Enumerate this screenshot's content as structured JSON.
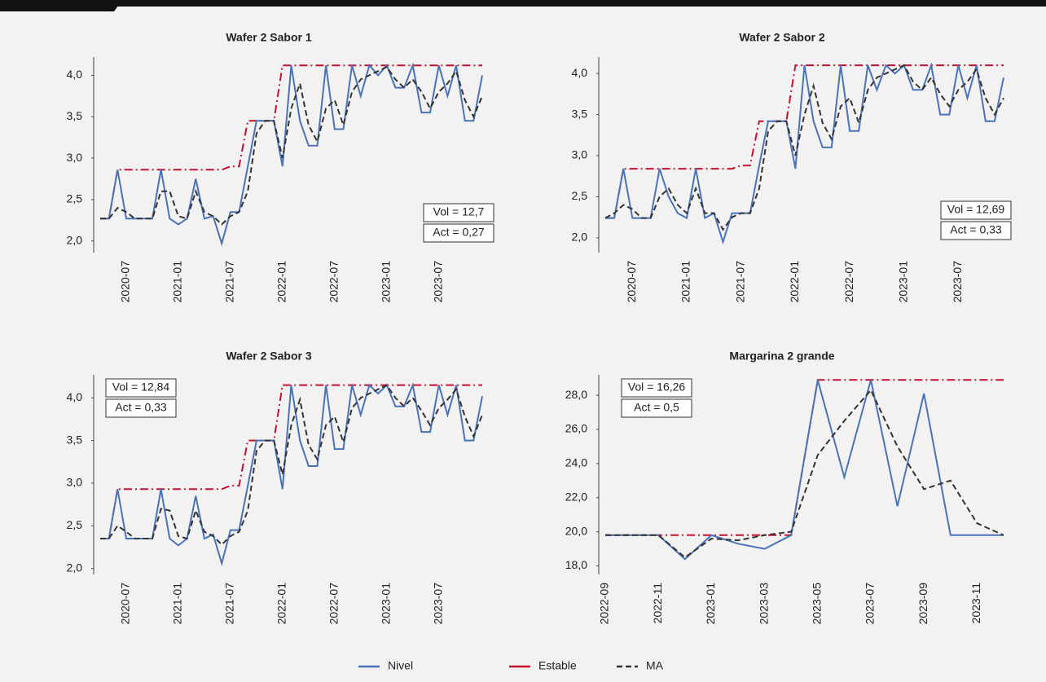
{
  "chart_data": [
    {
      "type": "line",
      "title": "Wafer 2 Sabor 1",
      "x": [
        "2020-04",
        "2020-05",
        "2020-06",
        "2020-07",
        "2020-08",
        "2020-09",
        "2020-10",
        "2020-11",
        "2020-12",
        "2021-01",
        "2021-02",
        "2021-03",
        "2021-04",
        "2021-05",
        "2021-06",
        "2021-07",
        "2021-08",
        "2021-09",
        "2021-10",
        "2021-11",
        "2021-12",
        "2022-01",
        "2022-02",
        "2022-03",
        "2022-04",
        "2022-05",
        "2022-06",
        "2022-07",
        "2022-08",
        "2022-09",
        "2022-10",
        "2022-11",
        "2022-12",
        "2023-01",
        "2023-02",
        "2023-03",
        "2023-04",
        "2023-05",
        "2023-06",
        "2023-07",
        "2023-08",
        "2023-09",
        "2023-10",
        "2023-11",
        "2023-12"
      ],
      "series": [
        {
          "name": "Nivel",
          "color": "#4a72b8",
          "style": "solid",
          "values": [
            2.27,
            2.27,
            2.86,
            2.27,
            2.27,
            2.27,
            2.27,
            2.86,
            2.27,
            2.2,
            2.27,
            2.75,
            2.27,
            2.3,
            1.97,
            2.35,
            2.35,
            2.9,
            3.45,
            3.45,
            3.45,
            2.9,
            4.12,
            3.45,
            3.15,
            3.15,
            4.12,
            3.35,
            3.35,
            4.12,
            3.75,
            4.12,
            4.0,
            4.12,
            3.85,
            3.85,
            4.12,
            3.55,
            3.55,
            4.12,
            3.75,
            4.12,
            3.45,
            3.45,
            4.0
          ]
        },
        {
          "name": "Estable",
          "color": "#c8102e",
          "style": "dashdot",
          "values": [
            2.27,
            2.27,
            2.86,
            2.86,
            2.86,
            2.86,
            2.86,
            2.86,
            2.86,
            2.86,
            2.86,
            2.86,
            2.86,
            2.86,
            2.86,
            2.9,
            2.9,
            3.45,
            3.45,
            3.45,
            3.45,
            4.12,
            4.12,
            4.12,
            4.12,
            4.12,
            4.12,
            4.12,
            4.12,
            4.12,
            4.12,
            4.12,
            4.12,
            4.12,
            4.12,
            4.12,
            4.12,
            4.12,
            4.12,
            4.12,
            4.12,
            4.12,
            4.12,
            4.12,
            4.12
          ]
        },
        {
          "name": "MA",
          "color": "#333333",
          "style": "dash",
          "values": [
            2.27,
            2.27,
            2.4,
            2.35,
            2.27,
            2.27,
            2.27,
            2.6,
            2.6,
            2.3,
            2.27,
            2.6,
            2.35,
            2.3,
            2.2,
            2.3,
            2.35,
            2.6,
            3.3,
            3.45,
            3.45,
            3.0,
            3.6,
            3.9,
            3.4,
            3.2,
            3.6,
            3.7,
            3.4,
            3.8,
            3.95,
            4.0,
            4.05,
            4.1,
            3.95,
            3.85,
            3.95,
            3.8,
            3.6,
            3.8,
            3.9,
            4.05,
            3.7,
            3.5,
            3.75
          ]
        }
      ],
      "xlim": [
        "2020-04",
        "2023-12"
      ],
      "xticks": [
        "2020-07",
        "2021-01",
        "2021-07",
        "2022-01",
        "2022-07",
        "2023-01",
        "2023-07"
      ],
      "ylim": [
        1.86,
        4.22
      ],
      "yticks": [
        {
          "value": 2,
          "label": "2,0"
        },
        {
          "value": 2.5,
          "label": "2,5"
        },
        {
          "value": 3,
          "label": "3,0"
        },
        {
          "value": 3.5,
          "label": "3,5"
        },
        {
          "value": 4,
          "label": "4,0"
        }
      ],
      "annotations": [
        "Vol = 12,7",
        "Act = 0,27"
      ]
    },
    {
      "type": "line",
      "title": "Wafer 2 Sabor 2",
      "x": [
        "2020-04",
        "2020-05",
        "2020-06",
        "2020-07",
        "2020-08",
        "2020-09",
        "2020-10",
        "2020-11",
        "2020-12",
        "2021-01",
        "2021-02",
        "2021-03",
        "2021-04",
        "2021-05",
        "2021-06",
        "2021-07",
        "2021-08",
        "2021-09",
        "2021-10",
        "2021-11",
        "2021-12",
        "2022-01",
        "2022-02",
        "2022-03",
        "2022-04",
        "2022-05",
        "2022-06",
        "2022-07",
        "2022-08",
        "2022-09",
        "2022-10",
        "2022-11",
        "2022-12",
        "2023-01",
        "2023-02",
        "2023-03",
        "2023-04",
        "2023-05",
        "2023-06",
        "2023-07",
        "2023-08",
        "2023-09",
        "2023-10",
        "2023-11",
        "2023-12"
      ],
      "series": [
        {
          "name": "Nivel",
          "color": "#4a72b8",
          "style": "solid",
          "values": [
            2.24,
            2.24,
            2.84,
            2.24,
            2.24,
            2.24,
            2.84,
            2.5,
            2.3,
            2.24,
            2.84,
            2.24,
            2.3,
            1.95,
            2.3,
            2.3,
            2.3,
            2.88,
            3.42,
            3.42,
            3.42,
            2.84,
            4.1,
            3.42,
            3.1,
            3.1,
            4.1,
            3.3,
            3.3,
            4.1,
            3.8,
            4.1,
            4.0,
            4.1,
            3.8,
            3.8,
            4.1,
            3.5,
            3.5,
            4.1,
            3.7,
            4.1,
            3.42,
            3.42,
            3.95
          ]
        },
        {
          "name": "Estable",
          "color": "#c8102e",
          "style": "dashdot",
          "values": [
            2.24,
            2.24,
            2.84,
            2.84,
            2.84,
            2.84,
            2.84,
            2.84,
            2.84,
            2.84,
            2.84,
            2.84,
            2.84,
            2.84,
            2.84,
            2.88,
            2.88,
            3.42,
            3.42,
            3.42,
            3.42,
            4.1,
            4.1,
            4.1,
            4.1,
            4.1,
            4.1,
            4.1,
            4.1,
            4.1,
            4.1,
            4.1,
            4.1,
            4.1,
            4.1,
            4.1,
            4.1,
            4.1,
            4.1,
            4.1,
            4.1,
            4.1,
            4.1,
            4.1,
            4.1
          ]
        },
        {
          "name": "MA",
          "color": "#333333",
          "style": "dash",
          "values": [
            2.24,
            2.3,
            2.4,
            2.35,
            2.24,
            2.24,
            2.5,
            2.6,
            2.4,
            2.3,
            2.6,
            2.3,
            2.3,
            2.1,
            2.25,
            2.3,
            2.3,
            2.6,
            3.3,
            3.42,
            3.42,
            3.0,
            3.5,
            3.85,
            3.4,
            3.2,
            3.6,
            3.7,
            3.4,
            3.8,
            3.95,
            4.0,
            4.05,
            4.1,
            3.9,
            3.8,
            3.95,
            3.75,
            3.6,
            3.8,
            3.9,
            4.05,
            3.7,
            3.5,
            3.7
          ]
        }
      ],
      "xlim": [
        "2020-04",
        "2023-12"
      ],
      "xticks": [
        "2020-07",
        "2021-01",
        "2021-07",
        "2022-01",
        "2022-07",
        "2023-01",
        "2023-07"
      ],
      "ylim": [
        1.82,
        4.2
      ],
      "yticks": [
        {
          "value": 2,
          "label": "2,0"
        },
        {
          "value": 2.5,
          "label": "2,5"
        },
        {
          "value": 3,
          "label": "3,0"
        },
        {
          "value": 3.5,
          "label": "3,5"
        },
        {
          "value": 4,
          "label": "4,0"
        }
      ],
      "annotations": [
        "Vol = 12,69",
        "Act = 0,33"
      ]
    },
    {
      "type": "line",
      "title": "Wafer 2 Sabor 3",
      "x": [
        "2020-04",
        "2020-05",
        "2020-06",
        "2020-07",
        "2020-08",
        "2020-09",
        "2020-10",
        "2020-11",
        "2020-12",
        "2021-01",
        "2021-02",
        "2021-03",
        "2021-04",
        "2021-05",
        "2021-06",
        "2021-07",
        "2021-08",
        "2021-09",
        "2021-10",
        "2021-11",
        "2021-12",
        "2022-01",
        "2022-02",
        "2022-03",
        "2022-04",
        "2022-05",
        "2022-06",
        "2022-07",
        "2022-08",
        "2022-09",
        "2022-10",
        "2022-11",
        "2022-12",
        "2023-01",
        "2023-02",
        "2023-03",
        "2023-04",
        "2023-05",
        "2023-06",
        "2023-07",
        "2023-08",
        "2023-09",
        "2023-10",
        "2023-11",
        "2023-12"
      ],
      "series": [
        {
          "name": "Nivel",
          "color": "#4a72b8",
          "style": "solid",
          "values": [
            2.35,
            2.35,
            2.93,
            2.35,
            2.35,
            2.35,
            2.35,
            2.93,
            2.35,
            2.27,
            2.35,
            2.85,
            2.35,
            2.4,
            2.06,
            2.45,
            2.45,
            2.97,
            3.5,
            3.5,
            3.5,
            2.93,
            4.15,
            3.5,
            3.2,
            3.2,
            4.15,
            3.4,
            3.4,
            4.15,
            3.8,
            4.15,
            4.05,
            4.15,
            3.9,
            3.9,
            4.15,
            3.6,
            3.6,
            4.15,
            3.8,
            4.15,
            3.5,
            3.5,
            4.02
          ]
        },
        {
          "name": "Estable",
          "color": "#c8102e",
          "style": "dashdot",
          "values": [
            2.35,
            2.35,
            2.93,
            2.93,
            2.93,
            2.93,
            2.93,
            2.93,
            2.93,
            2.93,
            2.93,
            2.93,
            2.93,
            2.93,
            2.93,
            2.97,
            2.97,
            3.5,
            3.5,
            3.5,
            3.5,
            4.15,
            4.15,
            4.15,
            4.15,
            4.15,
            4.15,
            4.15,
            4.15,
            4.15,
            4.15,
            4.15,
            4.15,
            4.15,
            4.15,
            4.15,
            4.15,
            4.15,
            4.15,
            4.15,
            4.15,
            4.15,
            4.15,
            4.15,
            4.15
          ]
        },
        {
          "name": "MA",
          "color": "#333333",
          "style": "dash",
          "values": [
            2.35,
            2.35,
            2.5,
            2.43,
            2.35,
            2.35,
            2.35,
            2.7,
            2.68,
            2.38,
            2.35,
            2.68,
            2.43,
            2.38,
            2.28,
            2.38,
            2.43,
            2.68,
            3.38,
            3.5,
            3.5,
            3.1,
            3.68,
            3.98,
            3.45,
            3.28,
            3.68,
            3.78,
            3.48,
            3.88,
            4.0,
            4.05,
            4.1,
            4.15,
            4.0,
            3.9,
            4.0,
            3.85,
            3.68,
            3.88,
            3.98,
            4.1,
            3.78,
            3.55,
            3.8
          ]
        }
      ],
      "xlim": [
        "2020-04",
        "2023-12"
      ],
      "xticks": [
        "2020-07",
        "2021-01",
        "2021-07",
        "2022-01",
        "2022-07",
        "2023-01",
        "2023-07"
      ],
      "ylim": [
        1.93,
        4.27
      ],
      "yticks": [
        {
          "value": 2,
          "label": "2,0"
        },
        {
          "value": 2.5,
          "label": "2,5"
        },
        {
          "value": 3,
          "label": "3,0"
        },
        {
          "value": 3.5,
          "label": "3,5"
        },
        {
          "value": 4,
          "label": "4,0"
        }
      ],
      "annotations": [
        "Vol = 12,84",
        "Act = 0,33"
      ]
    },
    {
      "type": "line",
      "title": "Margarina 2 grande",
      "x": [
        "2022-09",
        "2022-10",
        "2022-11",
        "2022-12",
        "2023-01",
        "2023-02",
        "2023-03",
        "2023-04",
        "2023-05",
        "2023-06",
        "2023-07",
        "2023-08",
        "2023-09",
        "2023-10",
        "2023-11",
        "2023-12"
      ],
      "series": [
        {
          "name": "Nivel",
          "color": "#4a72b8",
          "style": "solid",
          "values": [
            19.8,
            19.8,
            19.8,
            18.4,
            19.8,
            19.3,
            19.0,
            19.8,
            28.9,
            23.2,
            28.9,
            21.5,
            28.1,
            19.8,
            19.8,
            19.8
          ]
        },
        {
          "name": "Estable",
          "color": "#c8102e",
          "style": "dashdot",
          "values": [
            19.8,
            19.8,
            19.8,
            19.8,
            19.8,
            19.8,
            19.8,
            19.8,
            28.9,
            28.9,
            28.9,
            28.9,
            28.9,
            28.9,
            28.9,
            28.9
          ]
        },
        {
          "name": "MA",
          "color": "#333333",
          "style": "dash",
          "values": [
            19.8,
            19.8,
            19.8,
            18.5,
            19.6,
            19.5,
            19.8,
            20.0,
            24.5,
            26.5,
            28.3,
            25.0,
            22.5,
            23.0,
            20.5,
            19.8
          ]
        }
      ],
      "xlim": [
        "2022-09",
        "2023-12"
      ],
      "xticks": [
        "2022-09",
        "2022-11",
        "2023-01",
        "2023-03",
        "2023-05",
        "2023-07",
        "2023-09",
        "2023-11"
      ],
      "ylim": [
        17.5,
        29.2
      ],
      "yticks": [
        {
          "value": 18,
          "label": "18,0"
        },
        {
          "value": 20,
          "label": "20,0"
        },
        {
          "value": 22,
          "label": "22,0"
        },
        {
          "value": 24,
          "label": "24,0"
        },
        {
          "value": 26,
          "label": "26,0"
        },
        {
          "value": 28,
          "label": "28,0"
        }
      ],
      "annotations": [
        "Vol = 16,26",
        "Act = 0,5"
      ]
    }
  ]
}
